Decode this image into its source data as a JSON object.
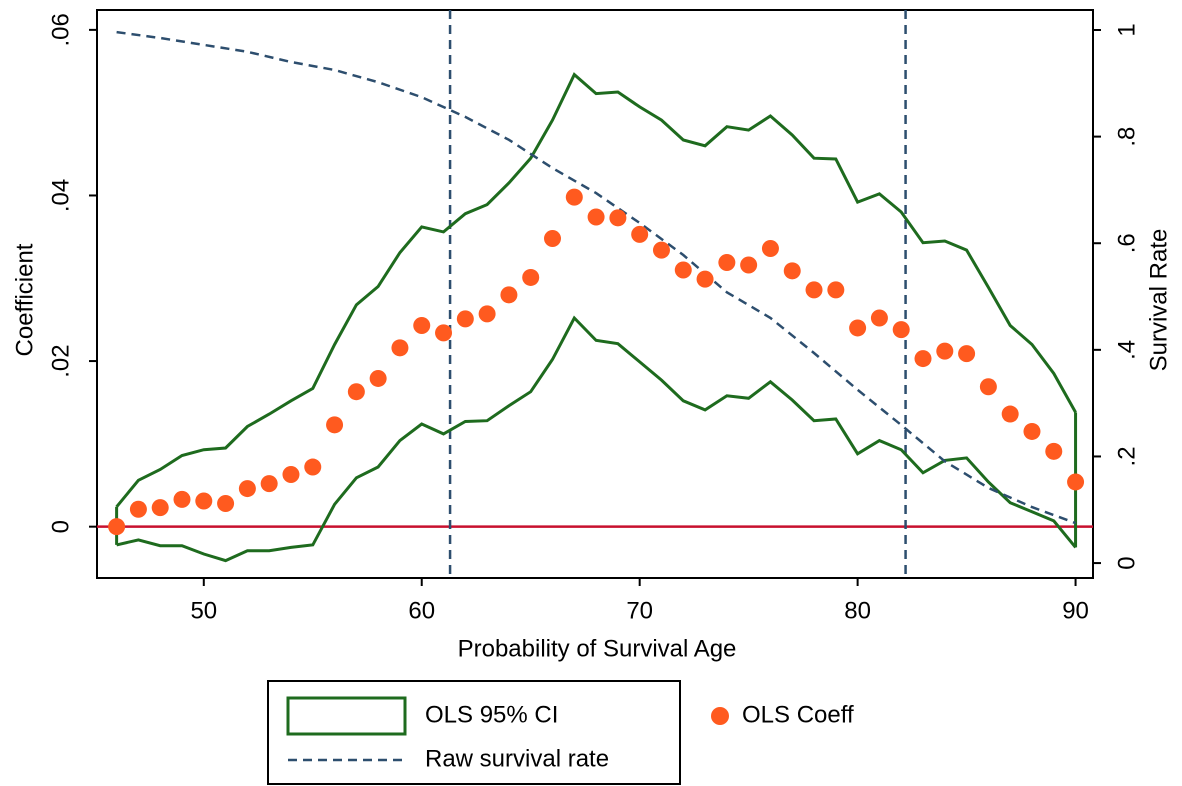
{
  "chart_data": {
    "type": "scatter",
    "x_label": "Probability of Survival Age",
    "y_label": "Coefficient",
    "y2_label": "Survival Rate",
    "x": [
      46,
      47,
      48,
      49,
      50,
      51,
      52,
      53,
      54,
      55,
      56,
      57,
      58,
      59,
      60,
      61,
      62,
      63,
      64,
      65,
      66,
      67,
      68,
      69,
      70,
      71,
      72,
      73,
      74,
      75,
      76,
      77,
      78,
      79,
      80,
      81,
      82,
      83,
      84,
      85,
      86,
      87,
      88,
      89,
      90
    ],
    "series": [
      {
        "name": "OLS 95% CI",
        "color": "#1e6b1e",
        "upper": [
          0.0024,
          0.0056,
          0.0069,
          0.0086,
          0.0093,
          0.0095,
          0.0121,
          0.0136,
          0.0152,
          0.0167,
          0.022,
          0.0268,
          0.029,
          0.0331,
          0.0362,
          0.0356,
          0.0378,
          0.0389,
          0.0415,
          0.0445,
          0.0491,
          0.0546,
          0.0523,
          0.0525,
          0.0507,
          0.0491,
          0.0467,
          0.046,
          0.0483,
          0.0479,
          0.0496,
          0.0473,
          0.0445,
          0.0444,
          0.0392,
          0.0402,
          0.038,
          0.0343,
          0.0345,
          0.0334,
          0.0289,
          0.0243,
          0.022,
          0.0185,
          0.0138
        ],
        "lower": [
          -0.0022,
          -0.0016,
          -0.0023,
          -0.0023,
          -0.0033,
          -0.0041,
          -0.0029,
          -0.0029,
          -0.0025,
          -0.0022,
          0.0027,
          0.0059,
          0.0072,
          0.0104,
          0.0124,
          0.0112,
          0.0127,
          0.0128,
          0.0146,
          0.0163,
          0.0202,
          0.0252,
          0.0225,
          0.0221,
          0.0199,
          0.0177,
          0.0152,
          0.0141,
          0.0158,
          0.0155,
          0.0175,
          0.0153,
          0.0128,
          0.013,
          0.0088,
          0.0104,
          0.0093,
          0.0065,
          0.008,
          0.0083,
          0.0054,
          0.0029,
          0.0018,
          0.0007,
          -0.0025
        ]
      },
      {
        "name": "OLS Coeff",
        "color": "#ff5a1f",
        "values": [
          0,
          0.0021,
          0.0023,
          0.0033,
          0.0031,
          0.0028,
          0.0046,
          0.0052,
          0.0063,
          0.0072,
          0.0123,
          0.0163,
          0.0179,
          0.0216,
          0.0243,
          0.0234,
          0.0251,
          0.0257,
          0.028,
          0.0301,
          0.0348,
          0.0398,
          0.0374,
          0.0373,
          0.0353,
          0.0334,
          0.031,
          0.0299,
          0.0319,
          0.0316,
          0.0336,
          0.0309,
          0.0286,
          0.0286,
          0.024,
          0.0252,
          0.0238,
          0.0203,
          0.0212,
          0.0209,
          0.0169,
          0.0136,
          0.0115,
          0.0091,
          0.0054
        ]
      },
      {
        "name": "Raw survival rate",
        "color": "#2d4e6e",
        "axis": "y2",
        "dashed": true,
        "x": [
          46,
          48,
          50,
          52,
          54,
          56,
          58,
          60,
          62,
          64,
          66,
          68,
          70,
          72,
          74,
          76,
          78,
          80,
          82,
          84,
          86,
          88,
          90
        ],
        "values": [
          0.996,
          0.985,
          0.972,
          0.959,
          0.94,
          0.925,
          0.902,
          0.874,
          0.837,
          0.794,
          0.741,
          0.694,
          0.638,
          0.578,
          0.508,
          0.46,
          0.394,
          0.325,
          0.259,
          0.191,
          0.141,
          0.105,
          0.075
        ]
      }
    ],
    "vlines": [
      61.3,
      82.2
    ],
    "vline_color": "#2d4e6e",
    "hline": 0,
    "hline_color": "#c8102e",
    "xlim": [
      45.1,
      90.8
    ],
    "xticks": [
      50,
      60,
      70,
      80,
      90
    ],
    "ylim": [
      -0.0062,
      0.0624
    ],
    "yticks": [
      0,
      {
        "value": 0.02,
        "label": ".02"
      },
      {
        "value": 0.04,
        "label": ".04"
      },
      {
        "value": 0.06,
        "label": ".06"
      }
    ],
    "y2lim": [
      -0.028,
      1.0375
    ],
    "y2ticks": [
      0,
      {
        "value": 0.2,
        "label": ".2"
      },
      {
        "value": 0.4,
        "label": ".4"
      },
      {
        "value": 0.6,
        "label": ".6"
      },
      {
        "value": 0.8,
        "label": ".8"
      },
      1
    ]
  }
}
